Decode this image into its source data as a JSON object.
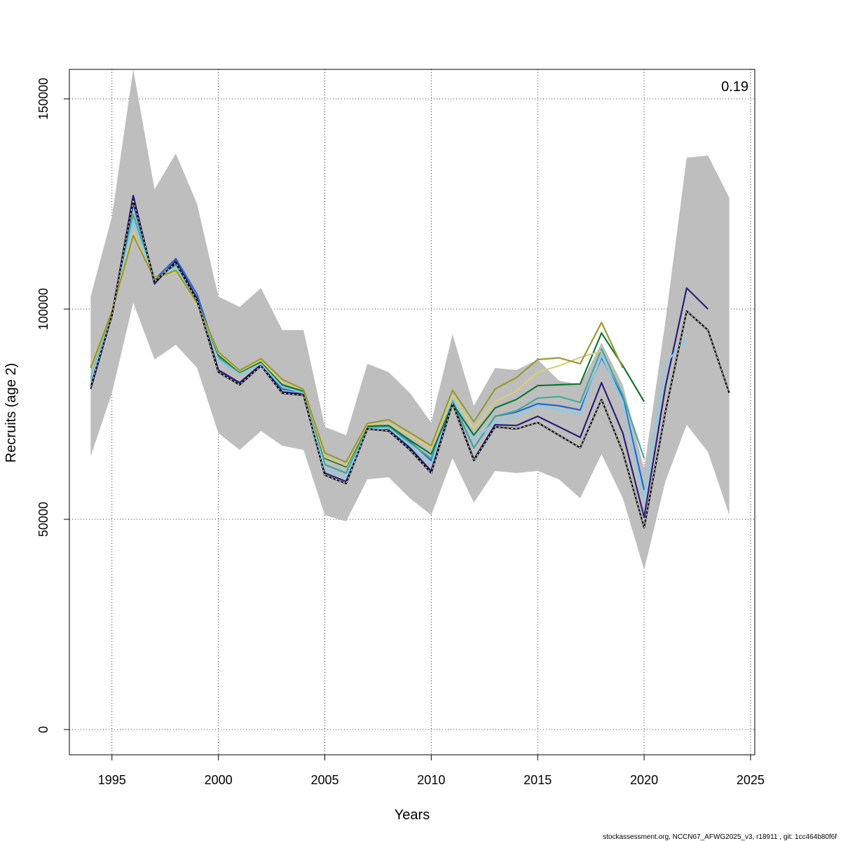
{
  "chart_data": {
    "type": "line",
    "xlabel": "Years",
    "ylabel": "Recruits (age 2)",
    "xlim": [
      1993,
      2025.2
    ],
    "ylim": [
      -6000,
      157000
    ],
    "xticks": [
      1995,
      2000,
      2005,
      2010,
      2015,
      2020,
      2025
    ],
    "yticks": [
      0,
      50000,
      100000,
      150000
    ],
    "grid": true,
    "annotation": "0.19",
    "footer": "stockassessment.org, NCCN67_AFWG2025_v3, r18911 , git: 1cc464b80f6f",
    "colors": {
      "band": "#bebebe",
      "base": "#000000"
    },
    "band": {
      "x": [
        1994,
        1995,
        1996,
        1997,
        1998,
        1999,
        2000,
        2001,
        2002,
        2003,
        2004,
        2005,
        2006,
        2007,
        2008,
        2009,
        2010,
        2011,
        2012,
        2013,
        2014,
        2015,
        2016,
        2017,
        2018,
        2019,
        2020,
        2021,
        2022,
        2023,
        2024
      ],
      "upper": [
        103000,
        122000,
        157000,
        128500,
        137000,
        125000,
        103000,
        100500,
        105000,
        95000,
        95000,
        72000,
        70000,
        87000,
        85000,
        80000,
        73000,
        94000,
        77000,
        86000,
        85500,
        88000,
        83000,
        82000,
        92000,
        82000,
        62000,
        97000,
        136000,
        136500,
        126500
      ],
      "lower": [
        65000,
        80000,
        101500,
        88000,
        91500,
        86000,
        70500,
        66500,
        71000,
        67500,
        66500,
        51000,
        49500,
        59500,
        60000,
        55000,
        51000,
        64500,
        54000,
        61500,
        61000,
        61500,
        59500,
        55000,
        65500,
        55000,
        38000,
        59000,
        72500,
        66000,
        51000
      ]
    },
    "series": [
      {
        "color": "#000000",
        "dashed": true,
        "x": [
          1994,
          1995,
          1996,
          1997,
          1998,
          1999,
          2000,
          2001,
          2002,
          2003,
          2004,
          2005,
          2006,
          2007,
          2008,
          2009,
          2010,
          2011,
          2012,
          2013,
          2014,
          2015,
          2016,
          2017,
          2018,
          2019,
          2020,
          2021,
          2022,
          2023,
          2024
        ],
        "values": [
          81500,
          98500,
          126000,
          106500,
          111000,
          102000,
          85000,
          82000,
          86500,
          80000,
          79500,
          60500,
          58500,
          71500,
          71000,
          66500,
          61000,
          77500,
          64000,
          72000,
          71500,
          73000,
          70000,
          67000,
          78500,
          66000,
          48000,
          75500,
          99500,
          95000,
          80000
        ]
      },
      {
        "color": "#2a1f7c",
        "dashed": false,
        "x": [
          1994,
          1995,
          1996,
          1997,
          1998,
          1999,
          2000,
          2001,
          2002,
          2003,
          2004,
          2005,
          2006,
          2007,
          2008,
          2009,
          2010,
          2011,
          2012,
          2013,
          2014,
          2015,
          2016,
          2017,
          2018,
          2019,
          2020,
          2021,
          2022,
          2023
        ],
        "values": [
          81000,
          98500,
          127000,
          106000,
          111500,
          102500,
          85500,
          82500,
          86800,
          80300,
          79800,
          61000,
          59000,
          71800,
          71500,
          67000,
          61500,
          77800,
          64200,
          72500,
          72300,
          74500,
          72000,
          69500,
          82500,
          70500,
          50500,
          81500,
          105000,
          100000
        ]
      },
      {
        "color": "#2a66c9",
        "dashed": false,
        "x": [
          1994,
          1995,
          1996,
          1997,
          1998,
          1999,
          2000,
          2001,
          2002,
          2003,
          2004,
          2005,
          2006,
          2007,
          2008,
          2009,
          2010,
          2011,
          2012,
          2013,
          2014,
          2015,
          2016,
          2017,
          2018,
          2019,
          2020
        ],
        "values": [
          81500,
          98700,
          125000,
          107000,
          112000,
          103500,
          88000,
          84500,
          87200,
          81000,
          80200,
          63000,
          61000,
          72000,
          72000,
          68500,
          64000,
          78000,
          67000,
          74500,
          75500,
          77500,
          77000,
          76000,
          88500,
          79000,
          57000
        ]
      },
      {
        "color": "#44aa99",
        "dashed": false,
        "x": [
          1994,
          1995,
          1996,
          1997,
          1998,
          1999,
          2000,
          2001,
          2002,
          2003,
          2004,
          2005,
          2006,
          2007,
          2008,
          2009,
          2010,
          2011,
          2012,
          2013,
          2014,
          2015,
          2016,
          2017,
          2018,
          2019,
          2020
        ],
        "values": [
          83500,
          99000,
          122500,
          107000,
          110500,
          102000,
          88500,
          84500,
          87500,
          81800,
          80300,
          63000,
          61000,
          71800,
          71900,
          68200,
          64500,
          78200,
          67000,
          74500,
          75800,
          78800,
          79200,
          77800,
          90500,
          79500,
          64500
        ]
      },
      {
        "color": "#88ccee",
        "dashed": false,
        "x": [
          1994,
          1995,
          1996,
          1997,
          1998,
          1999,
          2000,
          2001,
          2002,
          2003,
          2004,
          2005,
          2006,
          2007,
          2008,
          2009,
          2010,
          2011,
          2012,
          2013,
          2014,
          2015,
          2016,
          2017,
          2018,
          2019,
          2020,
          2021,
          2022
        ],
        "values": [
          83000,
          99000,
          121000,
          107000,
          110000,
          101500,
          88000,
          84500,
          87000,
          81500,
          80000,
          62000,
          60000,
          71500,
          71700,
          67500,
          63000,
          79000,
          69000,
          73000,
          74500,
          77000,
          76000,
          75000,
          89000,
          78000,
          55000,
          87000,
          93000
        ]
      },
      {
        "color": "#117733",
        "dashed": false,
        "x": [
          1994,
          1995,
          1996,
          1997,
          1998,
          1999,
          2000,
          2001,
          2002,
          2003,
          2004,
          2005,
          2006,
          2007,
          2008,
          2009,
          2010,
          2011,
          2012,
          2013,
          2014,
          2015,
          2016,
          2017,
          2018,
          2019,
          2020
        ],
        "values": [
          86000,
          99500,
          118000,
          107500,
          109000,
          101500,
          89000,
          85000,
          87500,
          82000,
          80500,
          64500,
          62500,
          72200,
          72300,
          68800,
          65500,
          77500,
          70000,
          76500,
          78500,
          81800,
          82000,
          82200,
          94300,
          86500,
          78000
        ]
      },
      {
        "color": "#ddcc77",
        "dashed": false,
        "x": [
          1994,
          1995,
          1996,
          1997,
          1998,
          1999,
          2000,
          2001,
          2002,
          2003,
          2004,
          2005,
          2006,
          2007,
          2008,
          2009,
          2010,
          2011,
          2012,
          2013,
          2014,
          2015,
          2016,
          2017,
          2018
        ],
        "values": [
          86500,
          99800,
          118200,
          107400,
          108800,
          101300,
          89500,
          85200,
          87800,
          82500,
          80800,
          64800,
          62800,
          72500,
          72800,
          70000,
          67000,
          79500,
          71500,
          78000,
          80500,
          85000,
          86500,
          88500,
          90000
        ]
      },
      {
        "color": "#999933",
        "dashed": false,
        "x": [
          1994,
          1995,
          1996,
          1997,
          1998,
          1999,
          2000,
          2001,
          2002,
          2003,
          2004,
          2005,
          2006,
          2007,
          2008,
          2009,
          2010,
          2011,
          2012,
          2013,
          2014,
          2015,
          2016,
          2017,
          2018,
          2019
        ],
        "values": [
          86000,
          99500,
          117500,
          107200,
          109200,
          101500,
          89800,
          85400,
          88200,
          83300,
          80900,
          65800,
          63600,
          72800,
          73700,
          70600,
          67500,
          80700,
          73200,
          81000,
          83700,
          88000,
          88400,
          87000,
          96800,
          86000
        ]
      }
    ]
  }
}
